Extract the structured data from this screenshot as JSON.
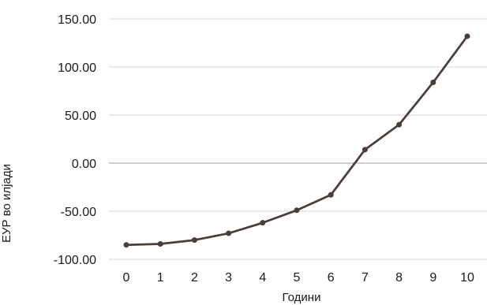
{
  "chart_data": {
    "type": "line",
    "title": "",
    "xlabel": "Години",
    "ylabel": "ЕУР во илјади",
    "categories": [
      "0",
      "1",
      "2",
      "3",
      "4",
      "5",
      "6",
      "7",
      "8",
      "9",
      "10"
    ],
    "series": [
      {
        "values": [
          -85,
          -84,
          -80,
          -73,
          -62,
          -49,
          -33,
          14,
          40,
          84,
          132
        ],
        "color": "#4a3e3a"
      }
    ],
    "ylim": [
      -100,
      150
    ],
    "yticks": [
      "-100.00",
      "-50.00",
      "0.00",
      "50.00",
      "100.00",
      "150.00"
    ],
    "grid": true,
    "legend": "none",
    "colors": {
      "line": "#4a3e3a",
      "grid": "#d4d4d4",
      "zero_line": "#9e9e9e"
    }
  }
}
